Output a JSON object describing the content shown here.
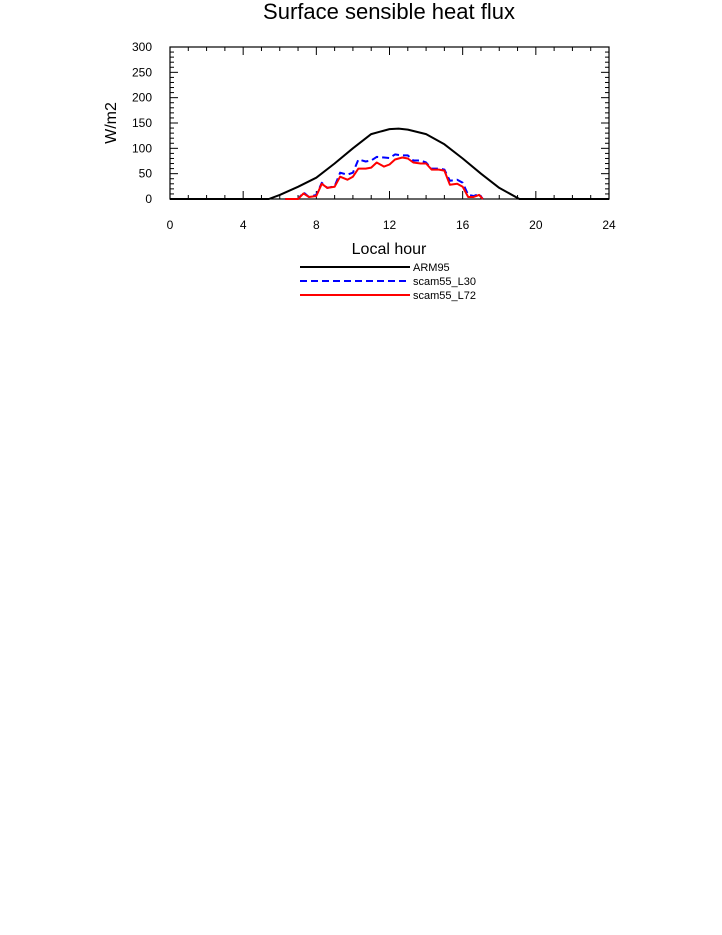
{
  "chart_data": {
    "type": "line",
    "title": "Surface sensible heat flux",
    "xlabel": "Local hour",
    "ylabel": "W/m2",
    "xlim": [
      0,
      24
    ],
    "ylim": [
      0,
      300
    ],
    "x_ticks": [
      0,
      4,
      8,
      12,
      16,
      20,
      24
    ],
    "x_tick_labels": [
      "0",
      "4",
      "8",
      "12",
      "16",
      "20",
      "24"
    ],
    "y_ticks": [
      0,
      50,
      100,
      150,
      200,
      250,
      300
    ],
    "y_tick_labels": [
      "0",
      "50",
      "100",
      "150",
      "200",
      "250",
      "300"
    ],
    "grid": false,
    "legend_position": "below-center",
    "series": [
      {
        "name": "ARM95",
        "color": "#000000",
        "dash": "solid",
        "x": [
          0,
          5.4,
          6,
          7,
          8,
          9,
          10,
          11,
          12,
          12.5,
          13,
          14,
          15,
          16,
          17,
          18,
          19.1,
          24
        ],
        "y": [
          0,
          0,
          8,
          24,
          42,
          70,
          100,
          128,
          138,
          139,
          137,
          128,
          108,
          80,
          50,
          22,
          0,
          0
        ]
      },
      {
        "name": "scam55_L30",
        "color": "#0000ff",
        "dash": "dashed",
        "x": [
          6.3,
          7.0,
          7.3,
          7.6,
          8.0,
          8.3,
          8.6,
          9.0,
          9.3,
          9.7,
          10.0,
          10.3,
          10.7,
          11.0,
          11.3,
          11.7,
          12.0,
          12.3,
          12.7,
          13.0,
          13.3,
          13.7,
          14.0,
          14.3,
          14.7,
          15.0,
          15.3,
          15.7,
          16.0,
          16.3,
          16.6,
          16.9,
          17.1
        ],
        "y": [
          0,
          0,
          13,
          4,
          8,
          32,
          22,
          25,
          52,
          48,
          52,
          78,
          74,
          76,
          83,
          82,
          81,
          88,
          86,
          86,
          76,
          76,
          72,
          60,
          60,
          58,
          36,
          38,
          32,
          8,
          6,
          10,
          0
        ]
      },
      {
        "name": "scam55_L72",
        "color": "#ff0000",
        "dash": "solid",
        "x": [
          6.3,
          7.0,
          7.3,
          7.6,
          8.0,
          8.3,
          8.6,
          9.0,
          9.3,
          9.7,
          10.0,
          10.3,
          10.7,
          11.0,
          11.3,
          11.7,
          12.0,
          12.3,
          12.7,
          13.0,
          13.3,
          13.7,
          14.0,
          14.3,
          14.7,
          15.0,
          15.3,
          15.7,
          16.0,
          16.3,
          16.6,
          16.9,
          17.1
        ],
        "y": [
          0,
          0,
          11,
          4,
          6,
          30,
          22,
          24,
          44,
          38,
          44,
          60,
          60,
          62,
          72,
          64,
          68,
          78,
          82,
          80,
          72,
          70,
          70,
          58,
          58,
          56,
          28,
          30,
          24,
          4,
          4,
          8,
          0
        ]
      }
    ]
  }
}
